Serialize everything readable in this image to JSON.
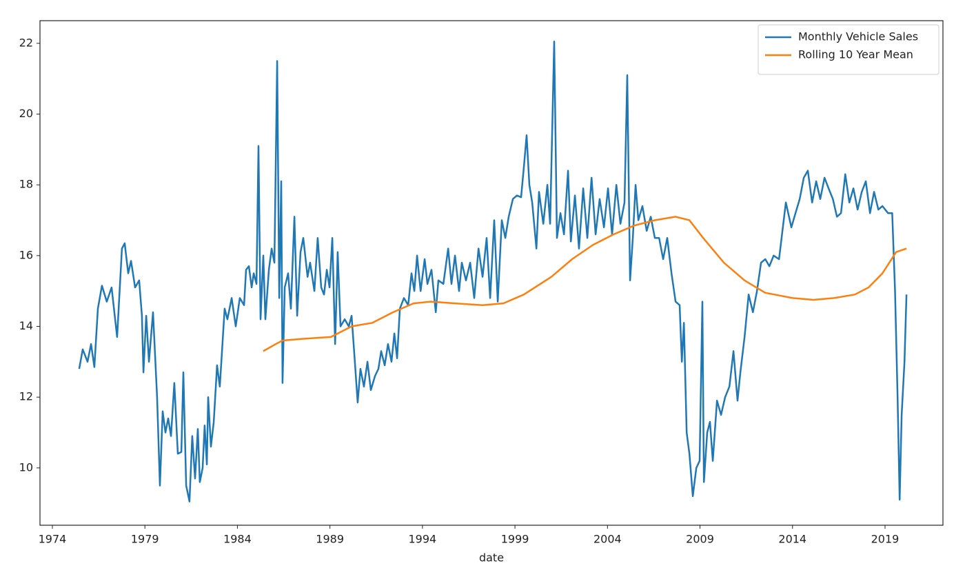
{
  "chart_data": {
    "type": "line",
    "xlabel": "date",
    "xlim": [
      1973.33,
      2022.13
    ],
    "ylim": [
      8.38,
      22.64
    ],
    "xticks": [
      1974,
      1979,
      1984,
      1989,
      1994,
      1999,
      2004,
      2009,
      2014,
      2019
    ],
    "yticks": [
      10,
      12,
      14,
      16,
      18,
      20,
      22
    ],
    "grid": false,
    "legend": "upper right",
    "series": [
      {
        "name": "Monthly Vehicle Sales",
        "color": "#1f77b4",
        "x": [
          1975.45,
          1975.64,
          1975.9,
          1976.09,
          1976.27,
          1976.46,
          1976.68,
          1976.94,
          1977.2,
          1977.5,
          1977.76,
          1977.91,
          1978.1,
          1978.25,
          1978.47,
          1978.69,
          1978.84,
          1978.92,
          1979.07,
          1979.22,
          1979.44,
          1979.66,
          1979.81,
          1979.96,
          1980.11,
          1980.26,
          1980.41,
          1980.59,
          1980.78,
          1980.97,
          1981.08,
          1981.23,
          1981.41,
          1981.56,
          1981.71,
          1981.86,
          1981.97,
          1982.12,
          1982.23,
          1982.35,
          1982.42,
          1982.57,
          1982.72,
          1982.9,
          1983.05,
          1983.31,
          1983.46,
          1983.69,
          1983.91,
          1984.13,
          1984.36,
          1984.47,
          1984.62,
          1984.77,
          1984.88,
          1985.03,
          1985.14,
          1985.25,
          1985.4,
          1985.51,
          1985.7,
          1985.85,
          1986.0,
          1986.15,
          1986.26,
          1986.37,
          1986.44,
          1986.56,
          1986.74,
          1986.89,
          1987.08,
          1987.23,
          1987.41,
          1987.56,
          1987.79,
          1987.93,
          1988.16,
          1988.34,
          1988.53,
          1988.68,
          1988.83,
          1988.98,
          1989.13,
          1989.28,
          1989.42,
          1989.57,
          1989.8,
          1990.02,
          1990.17,
          1990.32,
          1990.5,
          1990.65,
          1990.84,
          1991.03,
          1991.21,
          1991.44,
          1991.62,
          1991.77,
          1991.96,
          1992.14,
          1992.33,
          1992.48,
          1992.63,
          1992.78,
          1993.0,
          1993.23,
          1993.41,
          1993.56,
          1993.71,
          1993.9,
          1994.12,
          1994.27,
          1994.49,
          1994.72,
          1994.86,
          1995.13,
          1995.39,
          1995.57,
          1995.76,
          1995.98,
          1996.13,
          1996.35,
          1996.58,
          1996.8,
          1997.03,
          1997.25,
          1997.47,
          1997.66,
          1997.88,
          1998.07,
          1998.29,
          1998.48,
          1998.66,
          1998.89,
          1999.11,
          1999.33,
          1999.48,
          1999.63,
          1999.78,
          1999.93,
          2000.16,
          2000.3,
          2000.53,
          2000.75,
          2000.9,
          2001.12,
          2001.27,
          2001.46,
          2001.65,
          2001.87,
          2002.02,
          2002.24,
          2002.46,
          2002.69,
          2002.91,
          2003.14,
          2003.36,
          2003.58,
          2003.81,
          2004.03,
          2004.25,
          2004.48,
          2004.7,
          2004.92,
          2005.07,
          2005.22,
          2005.37,
          2005.52,
          2005.67,
          2005.89,
          2006.12,
          2006.34,
          2006.56,
          2006.79,
          2007.01,
          2007.23,
          2007.46,
          2007.68,
          2007.9,
          2008.02,
          2008.13,
          2008.28,
          2008.43,
          2008.61,
          2008.8,
          2008.98,
          2009.13,
          2009.21,
          2009.39,
          2009.54,
          2009.69,
          2009.92,
          2010.14,
          2010.36,
          2010.59,
          2010.81,
          2011.03,
          2011.18,
          2011.41,
          2011.63,
          2011.86,
          2012.08,
          2012.3,
          2012.53,
          2012.75,
          2012.98,
          2013.27,
          2013.64,
          2013.94,
          2014.16,
          2014.39,
          2014.61,
          2014.83,
          2015.06,
          2015.28,
          2015.5,
          2015.73,
          2015.95,
          2016.18,
          2016.4,
          2016.62,
          2016.85,
          2017.07,
          2017.29,
          2017.52,
          2017.74,
          2017.96,
          2018.19,
          2018.41,
          2018.64,
          2018.86,
          2019.16,
          2019.39,
          2019.54,
          2019.68,
          2019.79,
          2019.9,
          2020.05,
          2020.16
        ],
        "values": [
          12.8,
          13.35,
          13.0,
          13.5,
          12.85,
          14.5,
          15.15,
          14.7,
          15.1,
          13.7,
          16.2,
          16.35,
          15.5,
          15.85,
          15.1,
          15.3,
          14.3,
          12.7,
          14.3,
          13.0,
          14.4,
          12.0,
          9.5,
          11.6,
          11.0,
          11.4,
          10.9,
          12.4,
          10.4,
          10.45,
          12.7,
          9.5,
          9.05,
          10.9,
          9.7,
          11.1,
          9.6,
          10.0,
          11.2,
          10.1,
          12.0,
          10.6,
          11.3,
          12.9,
          12.3,
          14.5,
          14.2,
          14.8,
          14.0,
          14.8,
          14.6,
          15.6,
          15.7,
          15.1,
          15.5,
          15.2,
          19.1,
          14.2,
          16.0,
          14.2,
          15.6,
          16.2,
          15.8,
          21.5,
          14.8,
          18.1,
          12.4,
          15.1,
          15.5,
          14.5,
          17.1,
          14.3,
          16.1,
          16.5,
          15.4,
          15.8,
          15.0,
          16.5,
          15.1,
          14.9,
          15.6,
          15.1,
          16.5,
          13.5,
          16.1,
          14.0,
          14.2,
          14.0,
          14.3,
          13.2,
          11.85,
          12.8,
          12.3,
          13.0,
          12.2,
          12.6,
          12.8,
          13.3,
          12.9,
          13.5,
          13.0,
          13.8,
          13.1,
          14.5,
          14.8,
          14.6,
          15.5,
          15.0,
          16.0,
          15.0,
          15.9,
          15.2,
          15.6,
          14.4,
          15.3,
          15.2,
          16.2,
          15.2,
          16.0,
          15.0,
          15.8,
          15.3,
          15.8,
          14.8,
          16.2,
          15.4,
          16.5,
          14.8,
          17.0,
          14.7,
          17.0,
          16.5,
          17.1,
          17.6,
          17.7,
          17.65,
          18.5,
          19.4,
          18.0,
          17.5,
          16.2,
          17.8,
          16.9,
          18.0,
          16.9,
          22.05,
          16.5,
          17.2,
          16.6,
          18.4,
          16.4,
          17.7,
          16.2,
          17.9,
          16.5,
          18.2,
          16.6,
          17.6,
          16.8,
          17.9,
          16.6,
          18.0,
          16.9,
          17.5,
          21.1,
          15.3,
          16.5,
          18.0,
          17.0,
          17.4,
          16.7,
          17.1,
          16.5,
          16.5,
          15.9,
          16.5,
          15.5,
          14.7,
          14.6,
          13.0,
          14.1,
          11.0,
          10.4,
          9.2,
          10.0,
          10.2,
          14.7,
          9.6,
          11.0,
          11.3,
          10.2,
          11.9,
          11.5,
          12.0,
          12.3,
          13.3,
          11.9,
          12.7,
          13.7,
          14.9,
          14.4,
          15.0,
          15.8,
          15.9,
          15.7,
          16.0,
          15.9,
          17.5,
          16.8,
          17.2,
          17.6,
          18.2,
          18.4,
          17.5,
          18.1,
          17.6,
          18.2,
          17.9,
          17.6,
          17.1,
          17.2,
          18.3,
          17.5,
          17.9,
          17.3,
          17.8,
          18.1,
          17.2,
          17.8,
          17.3,
          17.4,
          17.2,
          17.2,
          15.0,
          12.0,
          9.1,
          11.5,
          13.0,
          14.9
        ]
      },
      {
        "name": "Rolling 10 Year Mean",
        "color": "#ff7f0e",
        "x": [
          1985.4,
          1986.07,
          1986.44,
          1987.56,
          1989.05,
          1990.17,
          1991.29,
          1992.41,
          1993.52,
          1994.45,
          1995.76,
          1997.25,
          1998.37,
          1999.48,
          2000.97,
          2002.09,
          2003.21,
          2004.33,
          2005.45,
          2006.56,
          2007.68,
          2008.43,
          2009.17,
          2010.29,
          2011.41,
          2012.52,
          2014.01,
          2015.13,
          2016.25,
          2017.37,
          2018.11,
          2018.86,
          2019.6,
          2020.16
        ],
        "values": [
          13.3,
          13.5,
          13.6,
          13.65,
          13.7,
          14.0,
          14.1,
          14.4,
          14.65,
          14.7,
          14.65,
          14.6,
          14.65,
          14.9,
          15.4,
          15.9,
          16.3,
          16.6,
          16.85,
          17.0,
          17.1,
          17.0,
          16.5,
          15.8,
          15.3,
          14.95,
          14.8,
          14.75,
          14.8,
          14.9,
          15.1,
          15.5,
          16.1,
          16.2
        ]
      }
    ]
  }
}
